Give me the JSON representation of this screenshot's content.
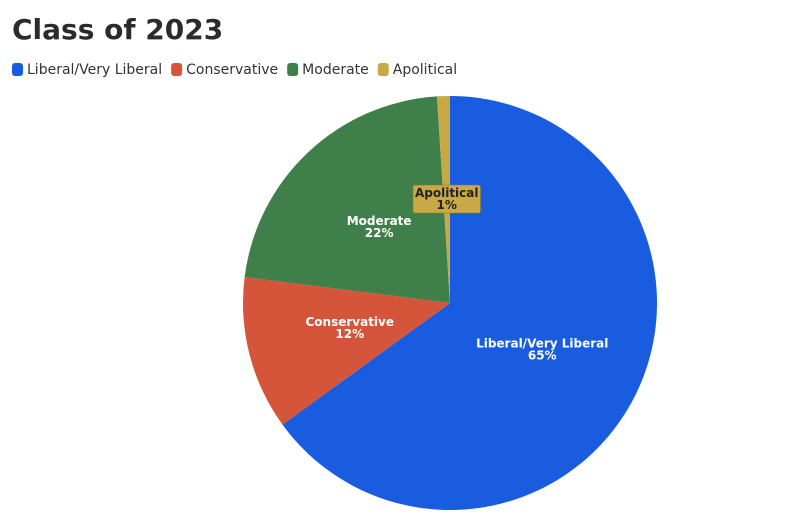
{
  "chart_data": {
    "type": "pie",
    "title": "Class of 2023",
    "categories": [
      "Liberal/Very Liberal",
      "Conservative",
      "Moderate",
      "Apolitical"
    ],
    "values": [
      65,
      12,
      22,
      1
    ],
    "value_labels": [
      "65%",
      "12%",
      "22%",
      "1%"
    ],
    "colors": [
      "#1a5ce0",
      "#d4553a",
      "#3f7f4a",
      "#c9a846"
    ],
    "legend": "top-left"
  }
}
